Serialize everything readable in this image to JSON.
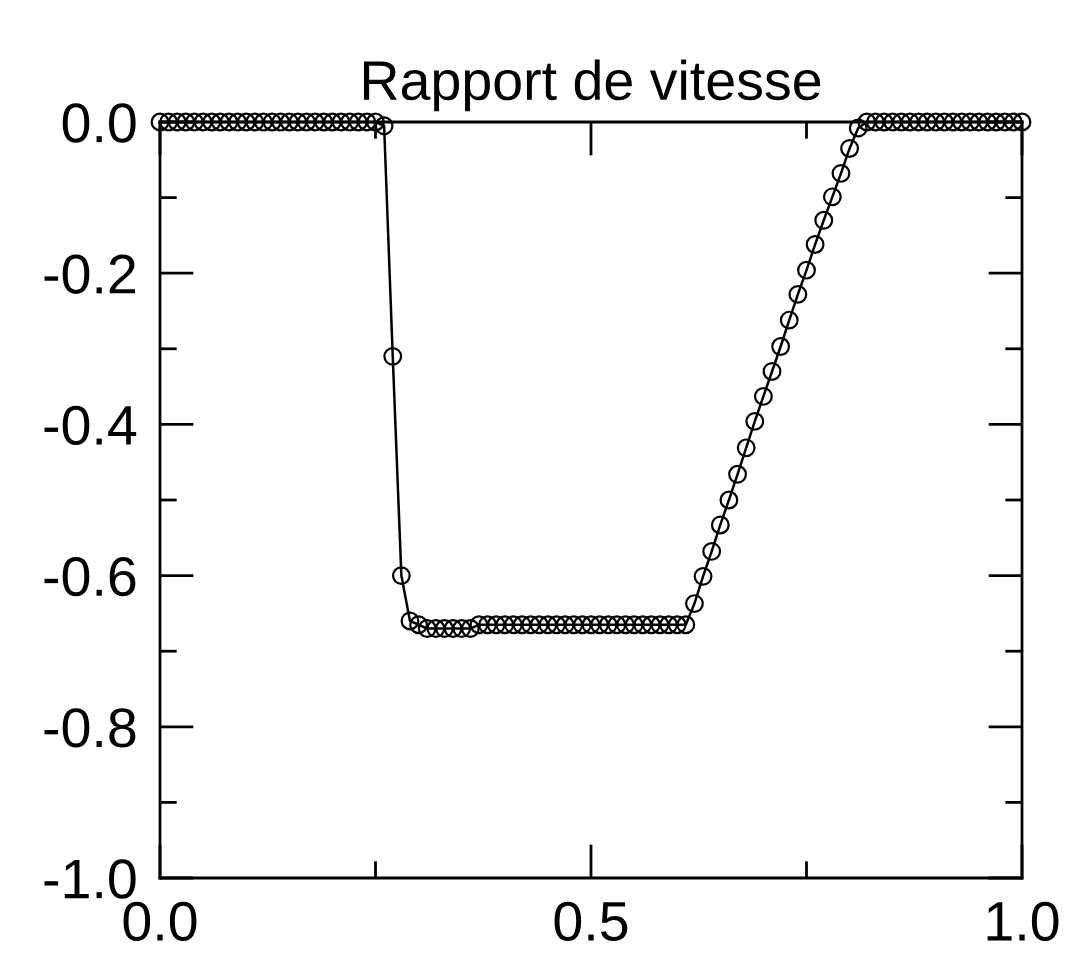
{
  "chart_data": {
    "type": "line",
    "title": "Rapport de vitesse",
    "x": [
      0.0,
      0.01,
      0.02,
      0.03,
      0.04,
      0.05,
      0.06,
      0.07,
      0.08,
      0.09,
      0.1,
      0.11,
      0.12,
      0.13,
      0.14,
      0.15,
      0.16,
      0.17,
      0.18,
      0.19,
      0.2,
      0.21,
      0.22,
      0.23,
      0.24,
      0.25,
      0.26,
      0.27,
      0.28,
      0.29,
      0.3,
      0.31,
      0.32,
      0.33,
      0.34,
      0.35,
      0.36,
      0.37,
      0.38,
      0.39,
      0.4,
      0.41,
      0.42,
      0.43,
      0.44,
      0.45,
      0.46,
      0.47,
      0.48,
      0.49,
      0.5,
      0.51,
      0.52,
      0.53,
      0.54,
      0.55,
      0.56,
      0.57,
      0.58,
      0.59,
      0.6,
      0.61,
      0.62,
      0.63,
      0.64,
      0.65,
      0.66,
      0.67,
      0.68,
      0.69,
      0.7,
      0.71,
      0.72,
      0.73,
      0.74,
      0.75,
      0.76,
      0.77,
      0.78,
      0.79,
      0.8,
      0.81,
      0.82,
      0.83,
      0.84,
      0.85,
      0.86,
      0.87,
      0.88,
      0.89,
      0.9,
      0.91,
      0.92,
      0.93,
      0.94,
      0.95,
      0.96,
      0.97,
      0.98,
      0.99,
      1.0
    ],
    "series": [
      {
        "color": "#000000",
        "values": [
          0,
          0,
          0,
          0,
          0,
          0,
          0,
          0,
          0,
          0,
          0,
          0,
          0,
          0,
          0,
          0,
          0,
          0,
          0,
          0,
          0,
          0,
          0,
          0,
          0,
          0,
          -0.005,
          -0.31,
          -0.6,
          -0.66,
          -0.665,
          -0.67,
          -0.67,
          -0.67,
          -0.67,
          -0.67,
          -0.67,
          -0.665,
          -0.665,
          -0.665,
          -0.665,
          -0.665,
          -0.665,
          -0.665,
          -0.665,
          -0.665,
          -0.665,
          -0.665,
          -0.665,
          -0.665,
          -0.665,
          -0.665,
          -0.665,
          -0.665,
          -0.665,
          -0.665,
          -0.665,
          -0.665,
          -0.665,
          -0.665,
          -0.665,
          -0.665,
          -0.637,
          -0.601,
          -0.568,
          -0.533,
          -0.5,
          -0.466,
          -0.431,
          -0.396,
          -0.363,
          -0.33,
          -0.297,
          -0.262,
          -0.228,
          -0.196,
          -0.162,
          -0.13,
          -0.099,
          -0.068,
          -0.035,
          -0.008,
          0,
          0,
          0,
          0,
          0,
          0,
          0,
          0,
          0,
          0,
          0,
          0,
          0,
          0,
          0,
          0,
          0,
          0,
          0
        ]
      }
    ],
    "marker": "circle",
    "line_style": "solid",
    "grid": false,
    "xlim": [
      0,
      1
    ],
    "ylim": [
      -1,
      0
    ],
    "xticks": [
      {
        "value": 0,
        "label": "0.0"
      },
      {
        "value": 0.25,
        "label": null
      },
      {
        "value": 0.5,
        "label": "0.5"
      },
      {
        "value": 0.75,
        "label": null
      },
      {
        "value": 1,
        "label": "1.0"
      }
    ],
    "yticks": [
      {
        "value": -1,
        "label": "-1.0"
      },
      {
        "value": -0.9,
        "label": null
      },
      {
        "value": -0.8,
        "label": "-0.8"
      },
      {
        "value": -0.7,
        "label": null
      },
      {
        "value": -0.6,
        "label": "-0.6"
      },
      {
        "value": -0.5,
        "label": null
      },
      {
        "value": -0.4,
        "label": "-0.4"
      },
      {
        "value": -0.3,
        "label": null
      },
      {
        "value": -0.2,
        "label": "-0.2"
      },
      {
        "value": -0.1,
        "label": null
      },
      {
        "value": 0,
        "label": "0.0"
      }
    ]
  }
}
